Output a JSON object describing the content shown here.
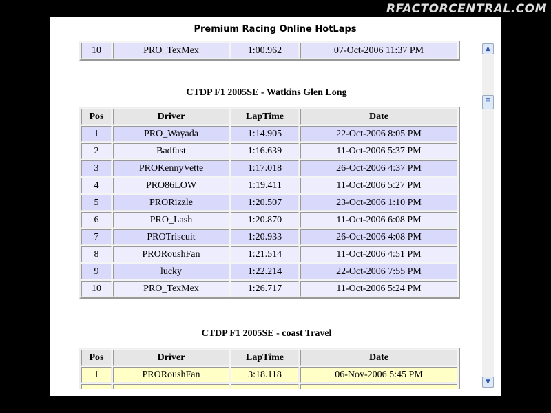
{
  "logo": "RFACTORCENTRAL.COM",
  "window": {
    "title": "Premium Racing Online HotLaps"
  },
  "tables": [
    {
      "rows": [
        [
          "10",
          "PRO_TexMex",
          "1:00.962",
          "07-Oct-2006 11:37 PM"
        ]
      ]
    },
    {
      "title": "CTDP F1 2005SE - Watkins Glen Long",
      "columns": [
        "Pos",
        "Driver",
        "LapTime",
        "Date"
      ],
      "rows": [
        [
          "1",
          "PRO_Wayada",
          "1:14.905",
          "22-Oct-2006 8:05 PM"
        ],
        [
          "2",
          "Badfast",
          "1:16.639",
          "11-Oct-2006 5:37 PM"
        ],
        [
          "3",
          "PROKennyVette",
          "1:17.018",
          "26-Oct-2006 4:37 PM"
        ],
        [
          "4",
          "PRO86LOW",
          "1:19.411",
          "11-Oct-2006 5:27 PM"
        ],
        [
          "5",
          "PRORizzle",
          "1:20.507",
          "23-Oct-2006 1:10 PM"
        ],
        [
          "6",
          "PRO_Lash",
          "1:20.870",
          "11-Oct-2006 6:08 PM"
        ],
        [
          "7",
          "PROTriscuit",
          "1:20.933",
          "26-Oct-2006 4:08 PM"
        ],
        [
          "8",
          "PRORoushFan",
          "1:21.514",
          "11-Oct-2006 4:51 PM"
        ],
        [
          "9",
          "lucky",
          "1:22.214",
          "22-Oct-2006 7:55 PM"
        ],
        [
          "10",
          "PRO_TexMex",
          "1:26.717",
          "11-Oct-2006 5:24 PM"
        ]
      ]
    },
    {
      "title": "CTDP F1 2005SE - coast Travel",
      "columns": [
        "Pos",
        "Driver",
        "LapTime",
        "Date"
      ],
      "rows": [
        [
          "1",
          "PRORoushFan",
          "3:18.118",
          "06-Nov-2006 5:45 PM"
        ]
      ]
    }
  ]
}
